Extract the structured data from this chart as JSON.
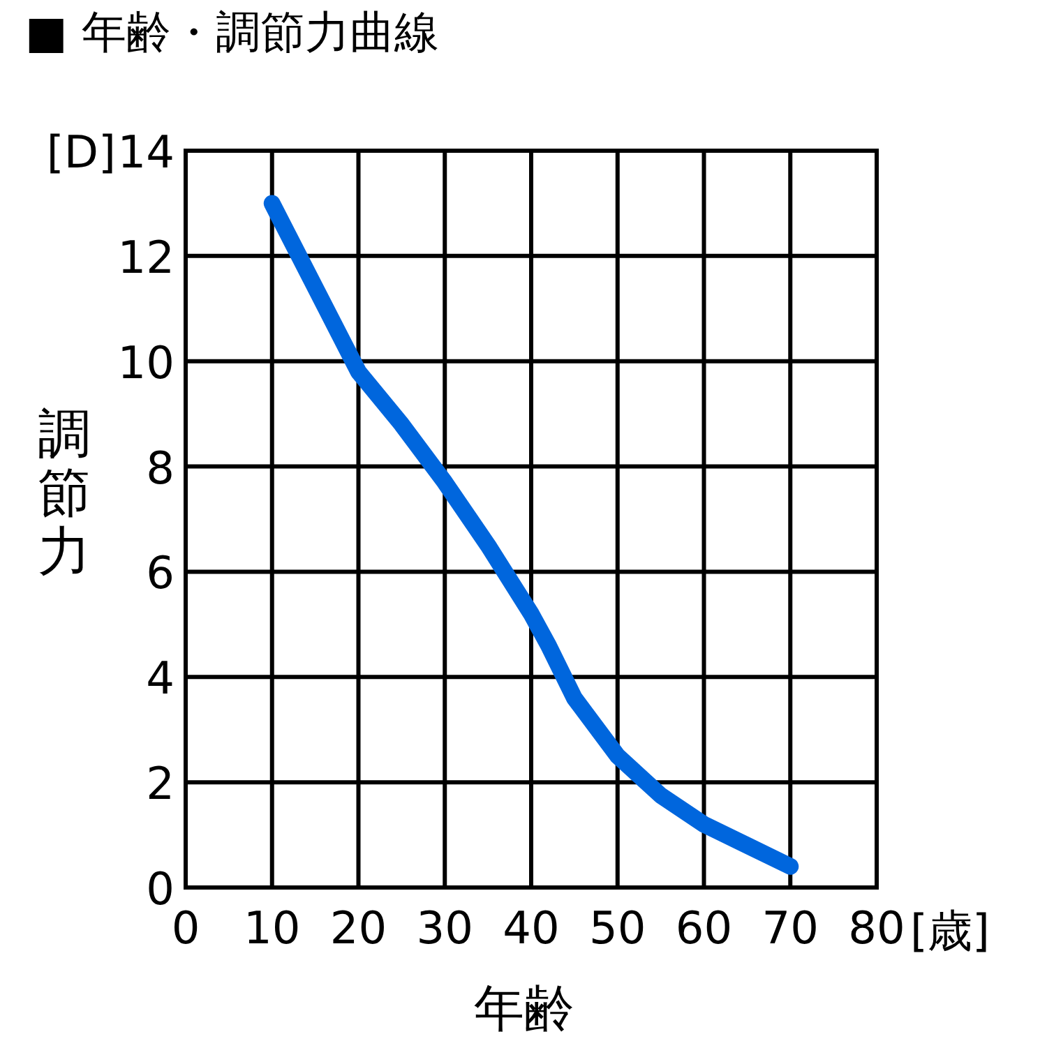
{
  "chart_data": {
    "type": "line",
    "title": "■ 年齢・調節力曲線",
    "xlabel": "年齢",
    "ylabel": "調節力",
    "annotations": [
      "[D]",
      "[歳]"
    ],
    "x": [
      10,
      15,
      20,
      25,
      30,
      35,
      40,
      42,
      45,
      50,
      55,
      60,
      65,
      70
    ],
    "series": [
      {
        "color": "#0066dd",
        "values": [
          13,
          11.4,
          9.8,
          8.8,
          7.7,
          6.5,
          5.2,
          4.6,
          3.6,
          2.5,
          1.75,
          1.2,
          0.8,
          0.4
        ]
      }
    ],
    "xlim": [
      0,
      80
    ],
    "ylim": [
      0,
      14
    ],
    "xticks": [
      0,
      10,
      20,
      30,
      40,
      50,
      60,
      70,
      80
    ],
    "yticks": [
      0,
      2,
      4,
      6,
      8,
      10,
      12,
      14
    ],
    "grid": true,
    "marker": "none",
    "line_style": "solid"
  }
}
